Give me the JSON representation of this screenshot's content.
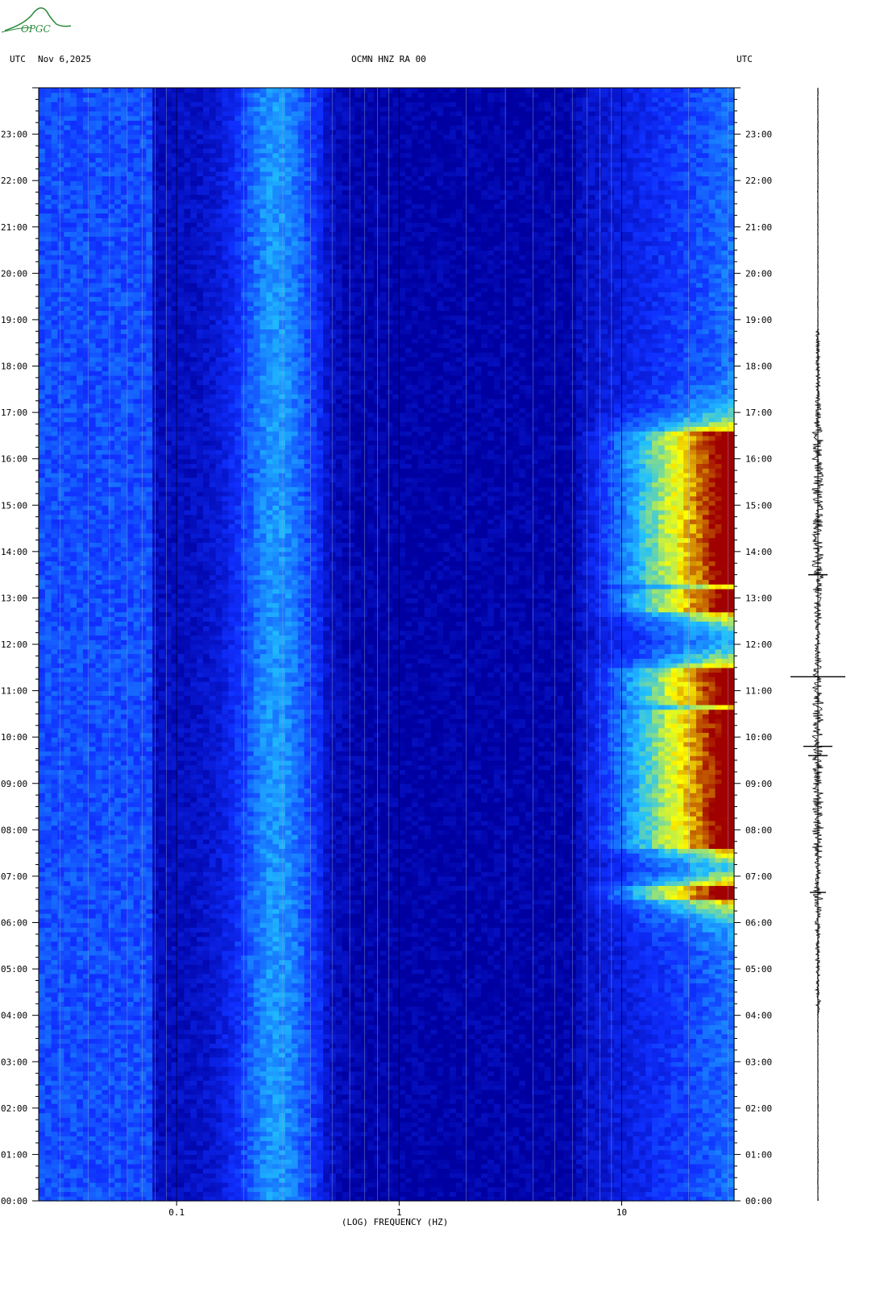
{
  "logo_text": "OPGC",
  "header": {
    "left_tz": "UTC",
    "date": "Nov 6,2025",
    "station": "OCMN HNZ RA 00",
    "right_tz": "UTC"
  },
  "chart_data": {
    "type": "heatmap",
    "title": "OCMN HNZ RA 00",
    "xlabel": "(LOG) FREQUENCY (HZ)",
    "x_scale": "log",
    "x_range_hz": [
      0.024,
      32
    ],
    "x_tick_labels": [
      "0.1",
      "1",
      "10"
    ],
    "x_tick_values": [
      0.1,
      1,
      10
    ],
    "y_range_hours": [
      0,
      24
    ],
    "y_tick_labels": [
      "00:00",
      "01:00",
      "02:00",
      "03:00",
      "04:00",
      "05:00",
      "06:00",
      "07:00",
      "08:00",
      "09:00",
      "10:00",
      "11:00",
      "12:00",
      "13:00",
      "14:00",
      "15:00",
      "16:00",
      "17:00",
      "18:00",
      "19:00",
      "20:00",
      "21:00",
      "22:00",
      "23:00"
    ],
    "colormap": [
      "#0000a0",
      "#1030ff",
      "#20c0ff",
      "#ffff00",
      "#a00000"
    ],
    "energetic_periods_utc": [
      {
        "start_hour": 6.5,
        "end_hour": 6.8
      },
      {
        "start_hour": 7.6,
        "end_hour": 10.6
      },
      {
        "start_hour": 10.7,
        "end_hour": 11.5
      },
      {
        "start_hour": 12.7,
        "end_hour": 13.2
      },
      {
        "start_hour": 13.3,
        "end_hour": 16.6
      }
    ],
    "seismogram": {
      "active_hours": [
        4.0,
        18.8
      ],
      "largest_events_hour": [
        6.65,
        9.6,
        9.8,
        11.3,
        13.5
      ]
    }
  }
}
